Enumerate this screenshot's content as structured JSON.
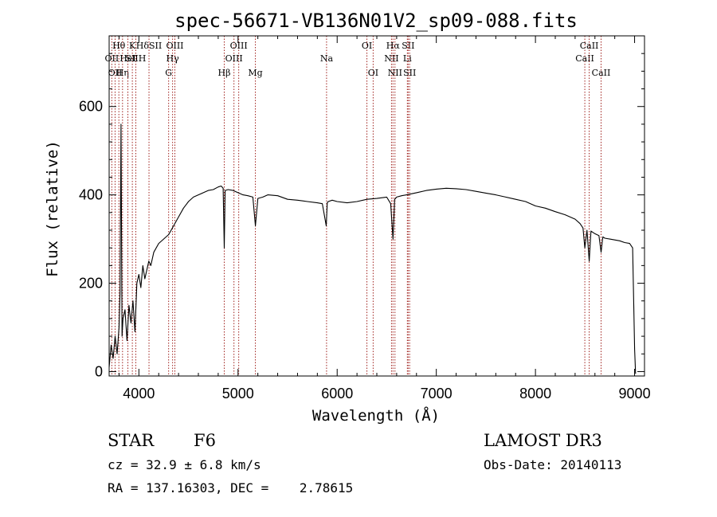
{
  "chart_data": {
    "type": "line",
    "title": "spec-56671-VB136N01V2_sp09-088.fits",
    "xlabel": "Wavelength (Å)",
    "ylabel": "Flux (relative)",
    "xlim": [
      3700,
      9100
    ],
    "ylim": [
      -10,
      760
    ],
    "xticks": [
      4000,
      5000,
      6000,
      7000,
      8000,
      9000
    ],
    "yticks": [
      0,
      200,
      400,
      600
    ],
    "series": [
      {
        "name": "flux",
        "x": [
          3700,
          3720,
          3740,
          3760,
          3780,
          3800,
          3810,
          3820,
          3830,
          3840,
          3860,
          3880,
          3900,
          3920,
          3940,
          3960,
          3980,
          4000,
          4020,
          4040,
          4060,
          4080,
          4100,
          4120,
          4150,
          4200,
          4250,
          4300,
          4350,
          4400,
          4450,
          4500,
          4550,
          4600,
          4650,
          4700,
          4750,
          4800,
          4830,
          4850,
          4861,
          4870,
          4900,
          4950,
          5000,
          5050,
          5100,
          5150,
          5175,
          5200,
          5250,
          5300,
          5400,
          5500,
          5600,
          5700,
          5800,
          5850,
          5890,
          5900,
          5910,
          5950,
          6000,
          6100,
          6200,
          6300,
          6400,
          6500,
          6540,
          6563,
          6580,
          6600,
          6650,
          6700,
          6800,
          6900,
          7000,
          7100,
          7200,
          7300,
          7400,
          7500,
          7600,
          7700,
          7800,
          7900,
          8000,
          8100,
          8200,
          8300,
          8400,
          8450,
          8480,
          8498,
          8520,
          8542,
          8560,
          8600,
          8640,
          8662,
          8680,
          8700,
          8750,
          8800,
          8850,
          8900,
          8950,
          8980,
          9000,
          9010
        ],
        "values": [
          10,
          60,
          30,
          80,
          40,
          100,
          180,
          560,
          80,
          120,
          140,
          70,
          150,
          110,
          160,
          90,
          200,
          220,
          190,
          240,
          210,
          230,
          250,
          240,
          270,
          290,
          300,
          310,
          330,
          350,
          370,
          385,
          395,
          400,
          405,
          410,
          412,
          418,
          420,
          415,
          280,
          410,
          412,
          410,
          405,
          400,
          398,
          395,
          330,
          392,
          395,
          400,
          398,
          390,
          388,
          385,
          382,
          380,
          330,
          382,
          385,
          388,
          385,
          382,
          385,
          390,
          392,
          395,
          380,
          300,
          390,
          395,
          398,
          400,
          405,
          410,
          413,
          415,
          414,
          412,
          408,
          404,
          400,
          395,
          390,
          385,
          375,
          370,
          362,
          355,
          345,
          335,
          325,
          280,
          320,
          250,
          318,
          312,
          308,
          270,
          305,
          302,
          300,
          298,
          296,
          292,
          290,
          280,
          50,
          -5
        ]
      }
    ],
    "lines": [
      {
        "w": 3727,
        "labels": [
          "OII"
        ],
        "row": 2
      },
      {
        "w": 3760,
        "labels": [
          "OII"
        ],
        "row": 3
      },
      {
        "w": 3798,
        "labels": [
          "Hθ"
        ],
        "row": 1
      },
      {
        "w": 3835,
        "labels": [
          "Hη"
        ],
        "row": 3
      },
      {
        "w": 3889,
        "labels": [
          "HeI"
        ],
        "row": 2
      },
      {
        "w": 3934,
        "labels": [
          "K"
        ],
        "row": 1
      },
      {
        "w": 3969,
        "labels": [
          "SII",
          "H"
        ],
        "row": 2
      },
      {
        "w": 4102,
        "labels": [
          "Hδ",
          "SII"
        ],
        "row": 1
      },
      {
        "w": 4300,
        "labels": [
          "G"
        ],
        "row": 3
      },
      {
        "w": 4340,
        "labels": [
          "Hγ"
        ],
        "row": 2
      },
      {
        "w": 4363,
        "labels": [
          "OIII"
        ],
        "row": 1
      },
      {
        "w": 4861,
        "labels": [
          "Hβ"
        ],
        "row": 3
      },
      {
        "w": 4959,
        "labels": [
          "OIII"
        ],
        "row": 2
      },
      {
        "w": 5007,
        "labels": [
          "OIII"
        ],
        "row": 1
      },
      {
        "w": 5175,
        "labels": [
          "Mg"
        ],
        "row": 3
      },
      {
        "w": 5893,
        "labels": [
          "Na"
        ],
        "row": 2
      },
      {
        "w": 6300,
        "labels": [
          "OI"
        ],
        "row": 1
      },
      {
        "w": 6363,
        "labels": [
          "OI"
        ],
        "row": 3
      },
      {
        "w": 6548,
        "labels": [
          "NII"
        ],
        "row": 2
      },
      {
        "w": 6563,
        "labels": [
          "Hα"
        ],
        "row": 1
      },
      {
        "w": 6583,
        "labels": [
          "NII"
        ],
        "row": 3
      },
      {
        "w": 6708,
        "labels": [
          "Li"
        ],
        "row": 2
      },
      {
        "w": 6716,
        "labels": [
          "SII"
        ],
        "row": 1
      },
      {
        "w": 6731,
        "labels": [
          "SII"
        ],
        "row": 3
      },
      {
        "w": 8498,
        "labels": [
          "CaII"
        ],
        "row": 2
      },
      {
        "w": 8542,
        "labels": [
          "CaII"
        ],
        "row": 1
      },
      {
        "w": 8662,
        "labels": [
          "CaII"
        ],
        "row": 3
      }
    ]
  },
  "info": {
    "class": "STAR",
    "subclass": "F6",
    "survey": "LAMOST DR3",
    "cz": "cz = 32.9 ± 6.8 km/s",
    "obs_date": "Obs-Date: 20140113",
    "radec": "RA = 137.16303, DEC =    2.78615"
  },
  "colors": {
    "spectrum": "#000000",
    "line_marker": "#a0221e"
  }
}
